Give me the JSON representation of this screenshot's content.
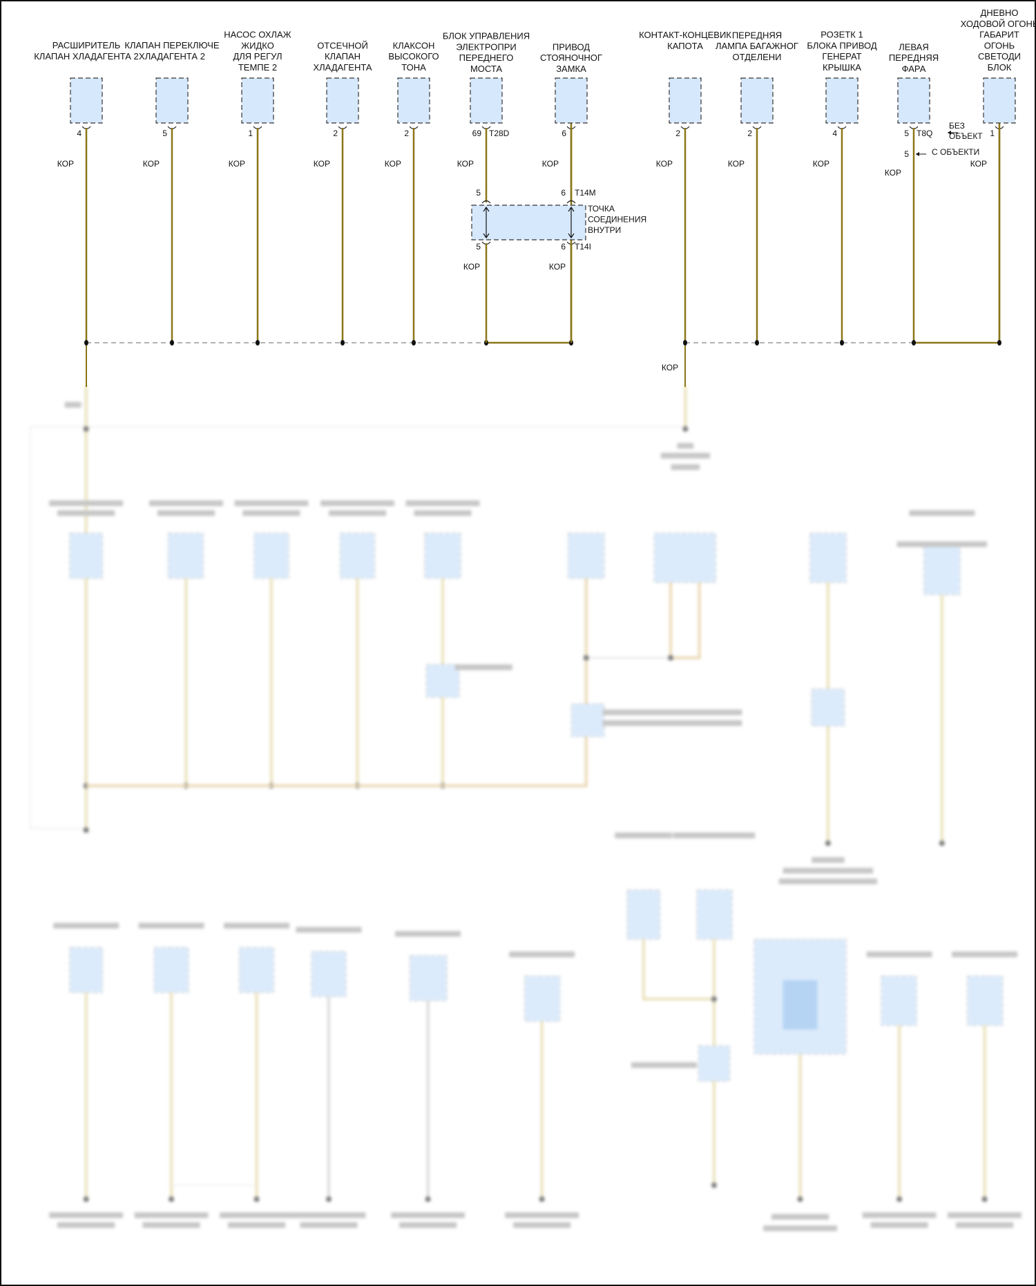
{
  "diagram": {
    "wire_color": "#8a7618",
    "box_fill": "#d6e8fb",
    "components": [
      {
        "lines": [
          "РАСШИРИТЕЛЬ",
          "КЛАПАН ХЛАДАГЕНТА 2"
        ],
        "pin": "4",
        "wire": "КОР"
      },
      {
        "lines": [
          "КЛАПАН ПЕРЕКЛЮЧЕ",
          "ХЛАДАГЕНТА 2"
        ],
        "pin": "5",
        "wire": "КОР"
      },
      {
        "lines": [
          "НАСОС ОХЛАЖ",
          "ЖИДКО",
          "ДЛЯ РЕГУЛ",
          "ТЕМПЕ 2"
        ],
        "pin": "1",
        "wire": "КОР"
      },
      {
        "lines": [
          "ОТСЕЧНОЙ",
          "КЛАПАН",
          "ХЛАДАГЕНТА"
        ],
        "pin": "2",
        "wire": "КОР"
      },
      {
        "lines": [
          "КЛАКСОН",
          "ВЫСОКОГО",
          "ТОНА"
        ],
        "pin": "2",
        "wire": "КОР"
      },
      {
        "lines": [
          "БЛОК УПРАВЛЕНИЯ",
          "ЭЛЕКТРОПРИ",
          "ПЕРЕДНЕГО",
          "МОСТА"
        ],
        "pin": "69",
        "connector": "T28D",
        "wire": "КОР"
      },
      {
        "lines": [
          "ПРИВОД",
          "СТОЯНОЧНОГ",
          "ЗАМКА"
        ],
        "pin": "6",
        "wire": "КОР"
      },
      {
        "lines": [
          "КОНТАКТ-КОНЦЕВИК",
          "КАПОТА"
        ],
        "pin": "2",
        "wire": "КОР"
      },
      {
        "lines": [
          "ПЕРЕДНЯЯ",
          "ЛАМПА БАГАЖНОГ",
          "ОТДЕЛЕНИ"
        ],
        "pin": "2",
        "wire": "КОР"
      },
      {
        "lines": [
          "РОЗЕТК 1",
          "БЛОКА ПРИВОД",
          "ГЕНЕРАТ",
          "КРЫШКА"
        ],
        "pin": "4",
        "wire": "КОР"
      },
      {
        "lines": [
          "ЛЕВАЯ",
          "ПЕРЕДНЯЯ",
          "ФАРА"
        ],
        "pin": "5",
        "connector": "T8Q",
        "note": [
          "БЕЗ",
          "ОБЪЕКТ"
        ],
        "pin_alt": "5",
        "note_alt": "С ОБЪЕКТИ",
        "wire": "КОР"
      },
      {
        "lines": [
          "ДНЕВНО",
          "ХОДОВОЙ ОГОНЬ",
          "ГАБАРИТ",
          "ОГОНЬ",
          "СВЕТОДИ",
          "БЛОК"
        ],
        "pin": "1",
        "wire": "КОР"
      }
    ],
    "splice": {
      "lines": [
        "ТОЧКА",
        "СОЕДИНЕНИЯ",
        "ВНУТРИ"
      ],
      "left_pin_top": "5",
      "right_pin_top": "6",
      "connector_top": "T14M",
      "left_pin_bottom": "5",
      "right_pin_bottom": "6",
      "connector_bottom": "T14I",
      "wire_left": "КОР",
      "wire_right": "КОР"
    },
    "ground_wire_label": "КОР"
  }
}
